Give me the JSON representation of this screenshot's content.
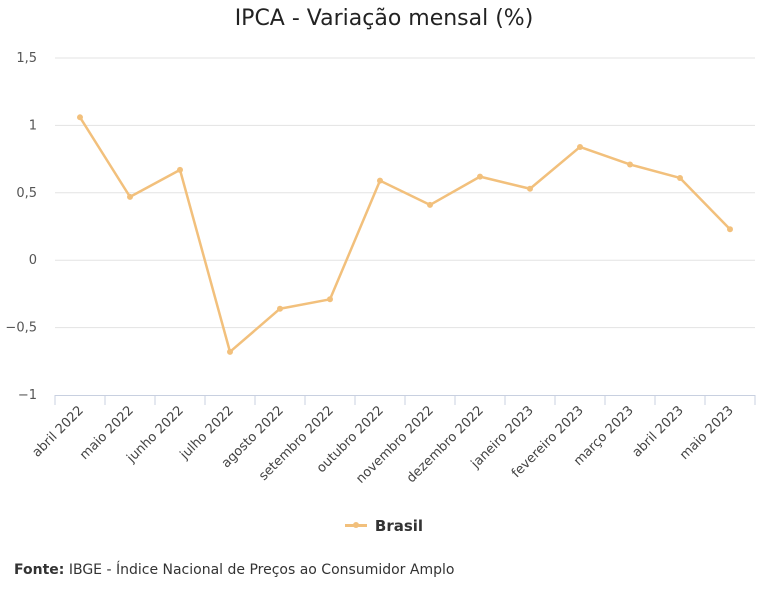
{
  "chart_data": {
    "type": "line",
    "title": "IPCA - Variação mensal (%)",
    "categories": [
      "abril 2022",
      "maio 2022",
      "junho 2022",
      "julho 2022",
      "agosto 2022",
      "setembro 2022",
      "outubro 2022",
      "novembro 2022",
      "dezembro 2022",
      "janeiro 2023",
      "fevereiro 2023",
      "março 2023",
      "abril 2023",
      "maio 2023"
    ],
    "series": [
      {
        "name": "Brasil",
        "values": [
          1.06,
          0.47,
          0.67,
          -0.68,
          -0.36,
          -0.29,
          0.59,
          0.41,
          0.62,
          0.53,
          0.84,
          0.71,
          0.61,
          0.23
        ],
        "color": "#f2c07c"
      }
    ],
    "ylim": [
      -1,
      1.5
    ],
    "yticks": [
      -1,
      -0.5,
      0,
      0.5,
      1,
      1.5
    ],
    "ytick_labels": [
      "−1",
      "−0,5",
      "0",
      "0,5",
      "1",
      "1,5"
    ],
    "grid": true,
    "legend": "bottom-center"
  },
  "source": {
    "label": "Fonte:",
    "text": "IBGE - Índice Nacional de Preços ao Consumidor Amplo"
  }
}
